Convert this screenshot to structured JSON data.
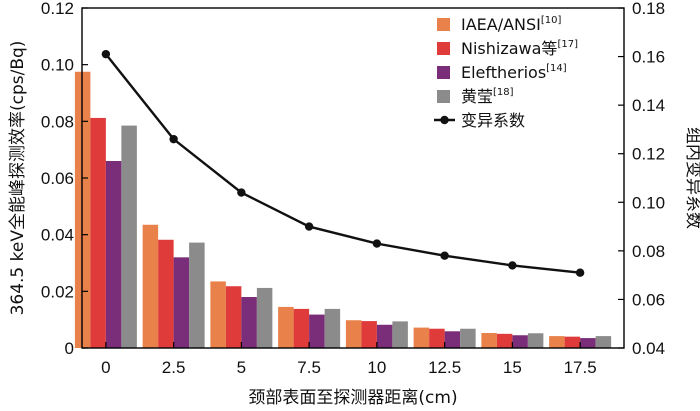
{
  "chart_data": {
    "type": "bar",
    "categories": [
      "0",
      "2.5",
      "5",
      "7.5",
      "10",
      "12.5",
      "15",
      "17.5"
    ],
    "series": [
      {
        "name": "IAEA/ANSI",
        "ref": "[10]",
        "color": "#E8824A",
        "values": [
          0.0975,
          0.0435,
          0.0235,
          0.0145,
          0.0098,
          0.0072,
          0.0053,
          0.0042
        ]
      },
      {
        "name": "Nishizawa等",
        "ref": "[17]",
        "color": "#E03B3B",
        "values": [
          0.0812,
          0.0382,
          0.0218,
          0.0138,
          0.0095,
          0.0068,
          0.005,
          0.004
        ]
      },
      {
        "name": "Eleftherios",
        "ref": "[14]",
        "color": "#7A2D78",
        "values": [
          0.066,
          0.032,
          0.018,
          0.0118,
          0.0082,
          0.0059,
          0.0045,
          0.0035
        ]
      },
      {
        "name": "黄莹",
        "ref": "[18]",
        "color": "#8B8B8B",
        "values": [
          0.0785,
          0.0372,
          0.0212,
          0.0138,
          0.0094,
          0.0068,
          0.0052,
          0.0042
        ]
      }
    ],
    "line_series": {
      "name": "变异系数",
      "axis": "right",
      "color": "#111111",
      "values": [
        0.161,
        0.126,
        0.104,
        0.09,
        0.083,
        0.078,
        0.074,
        0.071
      ]
    },
    "xlabel": "颈部表面至探测器距离(cm)",
    "ylabel": "364.5 keV全能峰探测效率(cps/Bq)",
    "y2label": "组内变异系数",
    "ylim": [
      0,
      0.12
    ],
    "y2lim": [
      0.04,
      0.18
    ],
    "yticks": [
      "0",
      "0.02",
      "0.04",
      "0.06",
      "0.08",
      "0.10",
      "0.12"
    ],
    "y2ticks": [
      "0.04",
      "0.06",
      "0.08",
      "0.10",
      "0.12",
      "0.14",
      "0.16",
      "0.18"
    ],
    "grid": false,
    "legend": "top-right"
  }
}
